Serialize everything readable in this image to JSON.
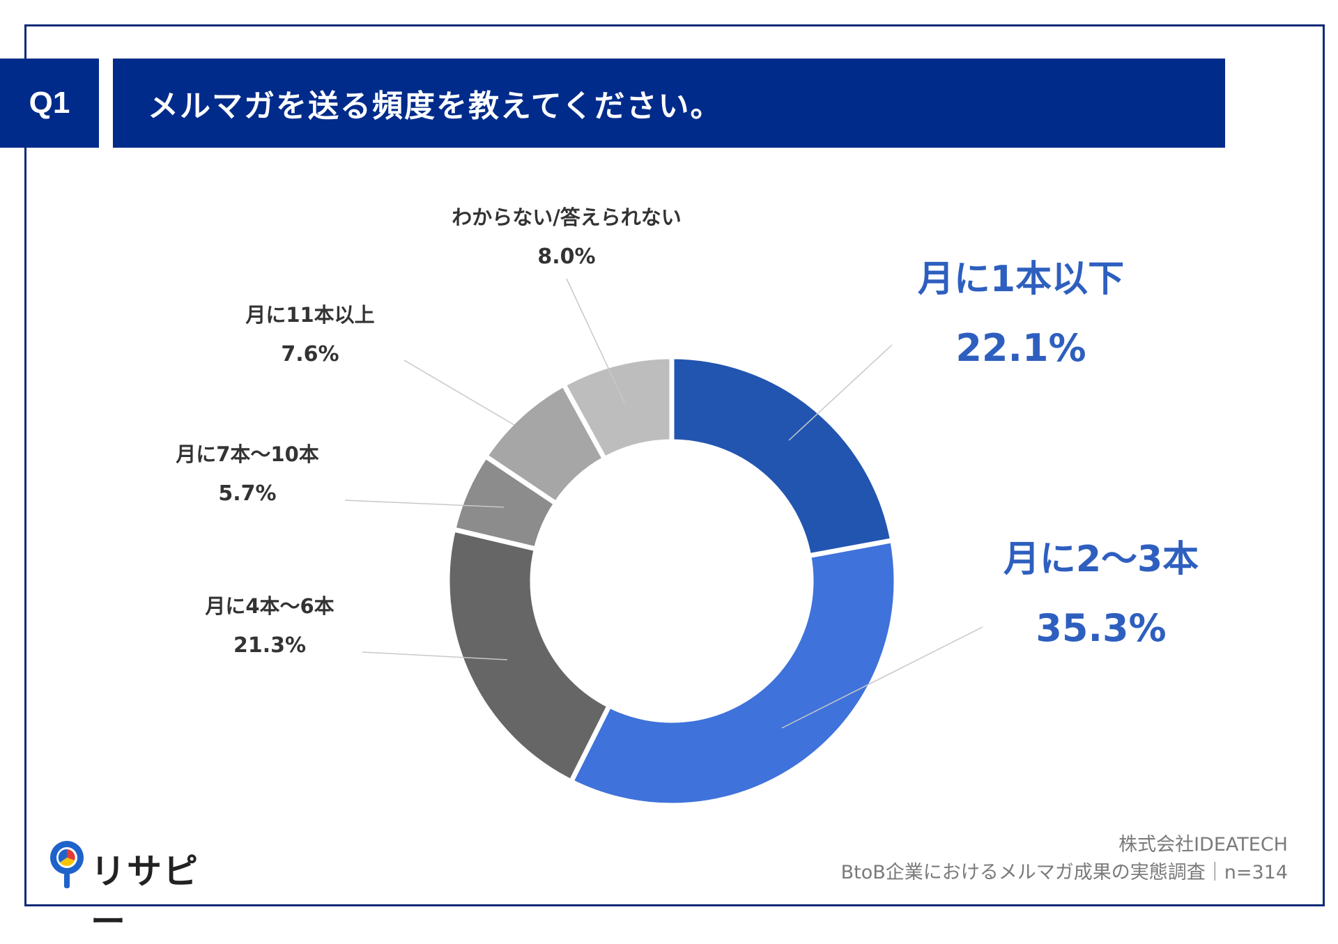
{
  "question": {
    "badge": "Q1",
    "title": "メルマガを送る頻度を教えてください。"
  },
  "chart_data": {
    "type": "pie",
    "variant": "donut",
    "title": "メルマガを送る頻度を教えてください。",
    "categories": [
      "月に1本以下",
      "月に2〜3本",
      "月に4本〜6本",
      "月に7本〜10本",
      "月に11本以上",
      "わからない/答えられない"
    ],
    "values": [
      22.1,
      35.3,
      21.3,
      5.7,
      7.6,
      8.0
    ],
    "value_labels": [
      "22.1%",
      "35.3%",
      "21.3%",
      "5.7%",
      "7.6%",
      "8.0%"
    ],
    "colors": [
      "#2255b0",
      "#3f72da",
      "#666666",
      "#8c8c8c",
      "#a6a6a6",
      "#bdbdbd"
    ],
    "label_colors": [
      "#2e5fbf",
      "#2e5fbf",
      "#333333",
      "#333333",
      "#333333",
      "#333333"
    ],
    "label_emphasis": [
      "large",
      "large",
      "normal",
      "normal",
      "normal",
      "normal"
    ],
    "unit": "%"
  },
  "footer": {
    "company": "株式会社IDEATECH",
    "survey": "BtoB企業におけるメルマガ成果の実態調査｜n=314"
  },
  "logo": {
    "text": "リサピー"
  }
}
